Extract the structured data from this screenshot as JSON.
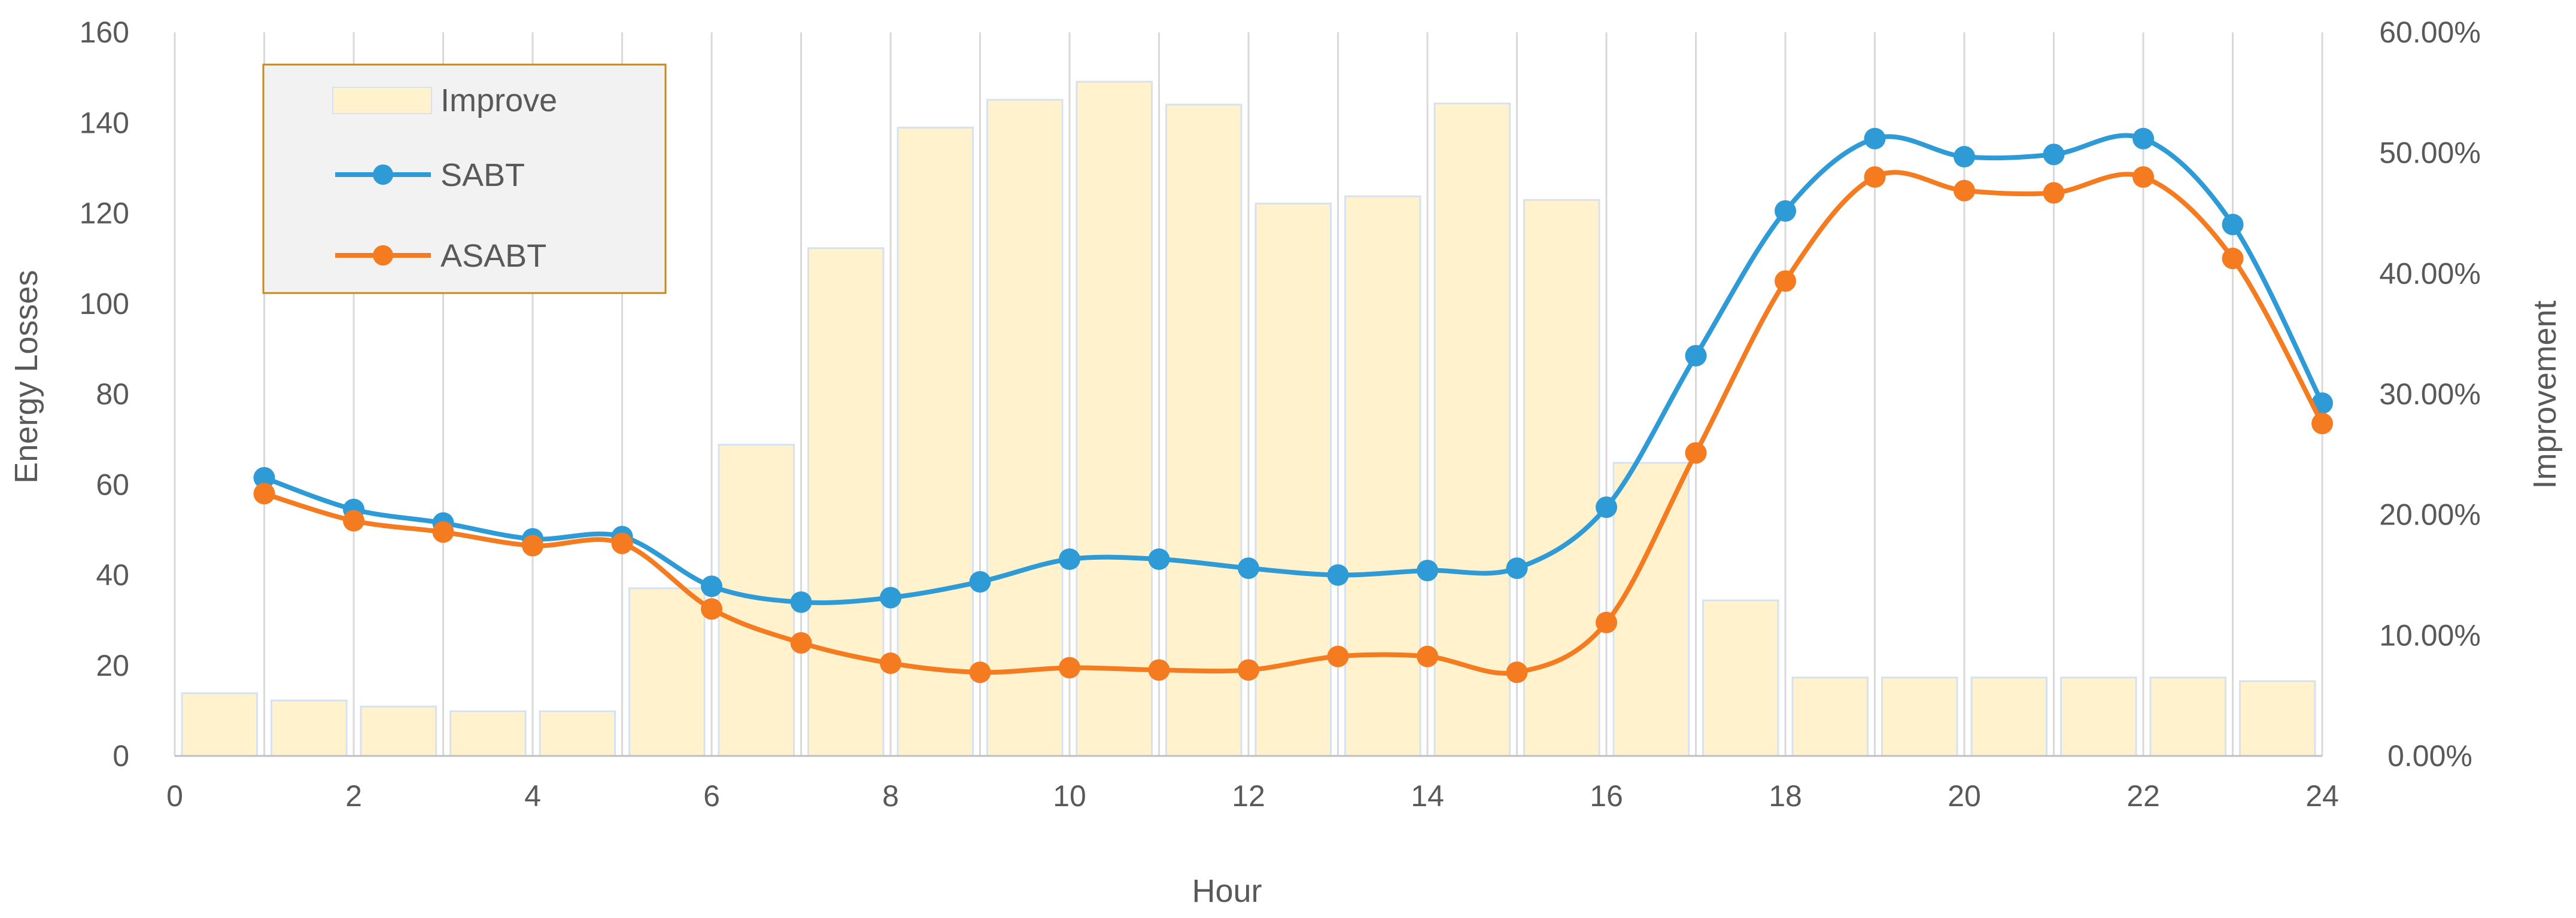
{
  "chart_data": {
    "type": "bar+line",
    "xlabel": "Hour",
    "ylabel_left": "Energy Losses",
    "ylabel_right": "Improvement",
    "xlim": [
      0,
      24
    ],
    "ylim_left": [
      0,
      160
    ],
    "ylim_right": [
      0,
      0.6
    ],
    "x_ticks": [
      "0",
      "2",
      "4",
      "6",
      "8",
      "10",
      "12",
      "14",
      "16",
      "18",
      "20",
      "22",
      "24"
    ],
    "y_left_ticks": [
      "0",
      "20",
      "40",
      "60",
      "80",
      "100",
      "120",
      "140",
      "160"
    ],
    "y_right_ticks": [
      "0.00%",
      "10.00%",
      "20.00%",
      "30.00%",
      "40.00%",
      "50.00%",
      "60.00%"
    ],
    "grid": "vertical",
    "legend_position": "top-left",
    "bars": {
      "name": "Improve",
      "axis": "right",
      "color": "#fff2cc",
      "edge_color": "#d6e2ef",
      "x": [
        0.5,
        1.5,
        2.5,
        3.5,
        4.5,
        5.5,
        6.5,
        7.5,
        8.5,
        9.5,
        10.5,
        11.5,
        12.5,
        13.5,
        14.5,
        15.5,
        16.5,
        17.5,
        18.5,
        19.5,
        20.5,
        21.5,
        22.5,
        23.5
      ],
      "values": [
        0.052,
        0.046,
        0.041,
        0.037,
        0.037,
        0.139,
        0.258,
        0.421,
        0.521,
        0.544,
        0.559,
        0.54,
        0.458,
        0.464,
        0.541,
        0.461,
        0.243,
        0.129,
        0.065,
        0.065,
        0.065,
        0.065,
        0.065,
        0.062
      ]
    },
    "series": [
      {
        "name": "SABT",
        "axis": "left",
        "color": "#2e9bd6",
        "x": [
          1,
          2,
          3,
          4,
          5,
          6,
          7,
          8,
          9,
          10,
          11,
          12,
          13,
          14,
          15,
          16,
          17,
          18,
          19,
          20,
          21,
          22,
          23,
          24
        ],
        "values": [
          61.5,
          54.5,
          51.5,
          48,
          48.5,
          37.5,
          34,
          35,
          38.5,
          43.5,
          43.5,
          41.5,
          40,
          41,
          41.5,
          55,
          88.5,
          120.5,
          136.5,
          132.5,
          133,
          136.5,
          117.5,
          78
        ]
      },
      {
        "name": "ASABT",
        "axis": "left",
        "color": "#f47b20",
        "x": [
          1,
          2,
          3,
          4,
          5,
          6,
          7,
          8,
          9,
          10,
          11,
          12,
          13,
          14,
          15,
          16,
          17,
          18,
          19,
          20,
          21,
          22,
          23,
          24
        ],
        "values": [
          58,
          52,
          49.5,
          46.5,
          47,
          32.5,
          25,
          20.5,
          18.5,
          19.5,
          19,
          19,
          22,
          22,
          18.5,
          29.5,
          67,
          105,
          128,
          125,
          124.5,
          128,
          110,
          73.5
        ]
      }
    ]
  }
}
